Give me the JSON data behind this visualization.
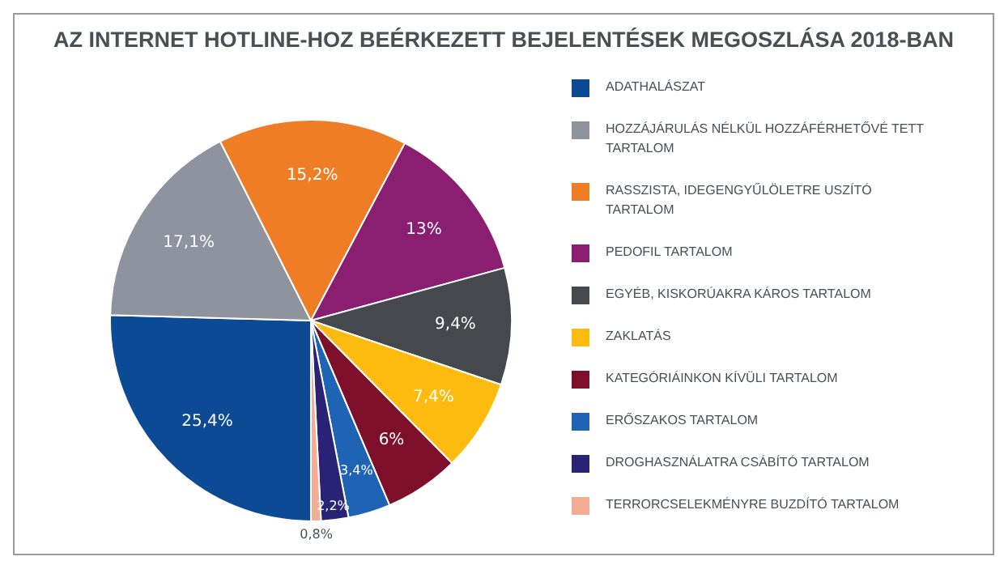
{
  "chart_data": {
    "type": "pie",
    "title": "AZ INTERNET HOTLINE-HOZ BEÉRKEZETT BEJELENTÉSEK MEGOSZLÁSA 2018-BAN",
    "categories": [
      "ADATHALÁSZAT",
      "HOZZÁJÁRULÁS NÉLKÜL HOZZÁFÉRHETŐVÉ TETT TARTALOM",
      "RASSZISTA, IDEGENGYŰLÖLETRE USZÍTÓ TARTALOM",
      "PEDOFIL TARTALOM",
      "EGYÉB, KISKORÚAKRA KÁROS TARTALOM",
      "ZAKLATÁS",
      "KATEGÓRIÁINKON KÍVÜLI TARTALOM",
      "ERŐSZAKOS TARTALOM",
      "DROGHASZNÁLATRA CSÁBÍTÓ TARTALOM",
      "TERRORCSELEKMÉNYRE BUZDÍTÓ TARTALOM"
    ],
    "values": [
      25.4,
      17.1,
      15.2,
      13,
      9.4,
      7.4,
      6,
      3.4,
      2.2,
      0.8
    ],
    "value_labels": [
      "25,4%",
      "17,1%",
      "15,2%",
      "13%",
      "9,4%",
      "7,4%",
      "6%",
      "3,4%",
      "2,2%",
      "0,8%"
    ],
    "colors": [
      "#0d4a96",
      "#8e939e",
      "#ee7d26",
      "#8a1e70",
      "#45494e",
      "#fdbb0f",
      "#7d0f2b",
      "#1f64b4",
      "#2a2275",
      "#f4ad94"
    ],
    "legend": "right"
  }
}
